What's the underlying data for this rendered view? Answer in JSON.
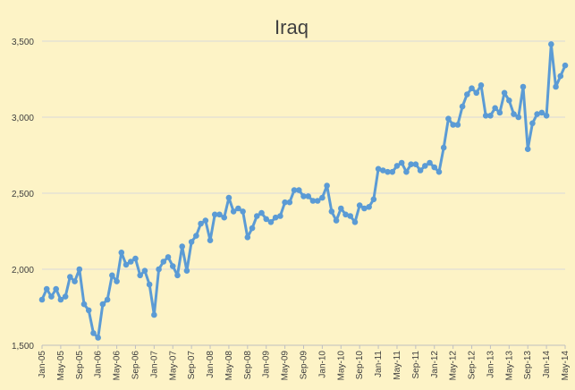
{
  "chart_data": {
    "type": "line",
    "title": "Iraq",
    "xlabel": "",
    "ylabel": "",
    "ylim": [
      1500,
      3500
    ],
    "yticks": [
      "1,500",
      "2,000",
      "2,500",
      "3,000",
      "3,500"
    ],
    "ytick_values": [
      1500,
      2000,
      2500,
      3000,
      3500
    ],
    "grid": "horizontal",
    "legend": "none",
    "line_color": "#5b9bd5",
    "background": "#fdf3c6",
    "xtick_labels": [
      "Jan-05",
      "May-05",
      "Sep-05",
      "Jan-06",
      "May-06",
      "Sep-06",
      "Jan-07",
      "May-07",
      "Sep-07",
      "Jan-08",
      "May-08",
      "Sep-08",
      "Jan-09",
      "May-09",
      "Sep-09",
      "Jan-10",
      "May-10",
      "Sep-10",
      "Jan-11",
      "May-11",
      "Sep-11",
      "Jan-12",
      "May-12",
      "Sep-12",
      "Jan-13",
      "May-13",
      "Sep-13",
      "Jan-14",
      "May-14"
    ],
    "series": [
      {
        "values": [
          1800,
          1870,
          1820,
          1870,
          1800,
          1820,
          1950,
          1920,
          2000,
          1770,
          1730,
          1580,
          1550,
          1770,
          1800,
          1960,
          1920,
          2110,
          2030,
          2050,
          2070,
          1960,
          1990,
          1900,
          1700,
          2000,
          2050,
          2080,
          2020,
          1960,
          2150,
          1990,
          2180,
          2220,
          2300,
          2320,
          2190,
          2360,
          2360,
          2340,
          2470,
          2380,
          2400,
          2380,
          2210,
          2270,
          2350,
          2370,
          2330,
          2310,
          2340,
          2350,
          2440,
          2440,
          2520,
          2520,
          2480,
          2480,
          2450,
          2450,
          2470,
          2550,
          2380,
          2320,
          2400,
          2360,
          2350,
          2310,
          2420,
          2400,
          2410,
          2460,
          2660,
          2650,
          2640,
          2640,
          2680,
          2700,
          2640,
          2690,
          2690,
          2650,
          2680,
          2700,
          2670,
          2640,
          2800,
          2990,
          2950,
          2950,
          3070,
          3150,
          3190,
          3160,
          3210,
          3010,
          3010,
          3060,
          3030,
          3160,
          3110,
          3020,
          3000,
          3200,
          2790,
          2960,
          3020,
          3030,
          3010,
          3480,
          3200,
          3270,
          3340
        ]
      }
    ]
  }
}
